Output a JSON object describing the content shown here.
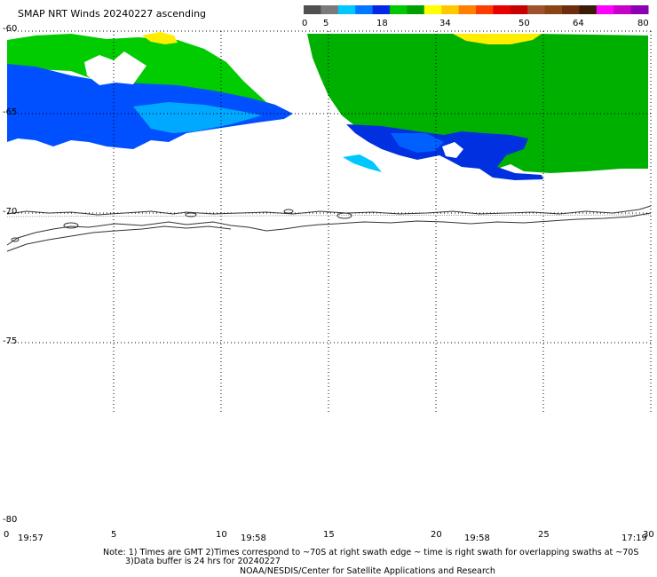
{
  "title": "SMAP NRT Winds 20240227 ascending",
  "colorbar": {
    "ticks": [
      "0",
      "5",
      "18",
      "34",
      "50",
      "64",
      "80"
    ],
    "segments": [
      {
        "color": "#505050"
      },
      {
        "color": "#7a7a7a"
      },
      {
        "color": "#00c8ff"
      },
      {
        "color": "#0078ff"
      },
      {
        "color": "#0028e6"
      },
      {
        "color": "#00c800"
      },
      {
        "color": "#00a000"
      },
      {
        "color": "#ffff00"
      },
      {
        "color": "#ffc800"
      },
      {
        "color": "#ff8000"
      },
      {
        "color": "#ff3c00"
      },
      {
        "color": "#e60000"
      },
      {
        "color": "#c80000"
      },
      {
        "color": "#a0522d"
      },
      {
        "color": "#8b4513"
      },
      {
        "color": "#6b2e0e"
      },
      {
        "color": "#3c1a08"
      },
      {
        "color": "#ff00ff"
      },
      {
        "color": "#c800c8"
      },
      {
        "color": "#8c00b4"
      }
    ]
  },
  "y_labels": [
    "-60",
    "-65",
    "-70",
    "-75",
    "-80"
  ],
  "x_labels": [
    "0",
    "5",
    "10",
    "15",
    "20",
    "25",
    "30"
  ],
  "time_labels": [
    "19:57",
    "19:58",
    "19:58",
    "17:19"
  ],
  "notes": {
    "line1": "Note: 1) Times are GMT 2)Times correspond to ~70S at right swath edge ~ time is right swath for overlapping swaths at ~70S",
    "line2": "3)Data buffer is 24 hrs for 20240227",
    "line3": "NOAA/NESDIS/Center for Satellite Applications and Research"
  },
  "palette": {
    "green": "#00cc00",
    "dark_green": "#00b000",
    "light_blue": "#00a8ff",
    "blue": "#0050ff",
    "dark_blue": "#0030e0",
    "cyan": "#00d0ff",
    "yellow": "#ffee00"
  }
}
